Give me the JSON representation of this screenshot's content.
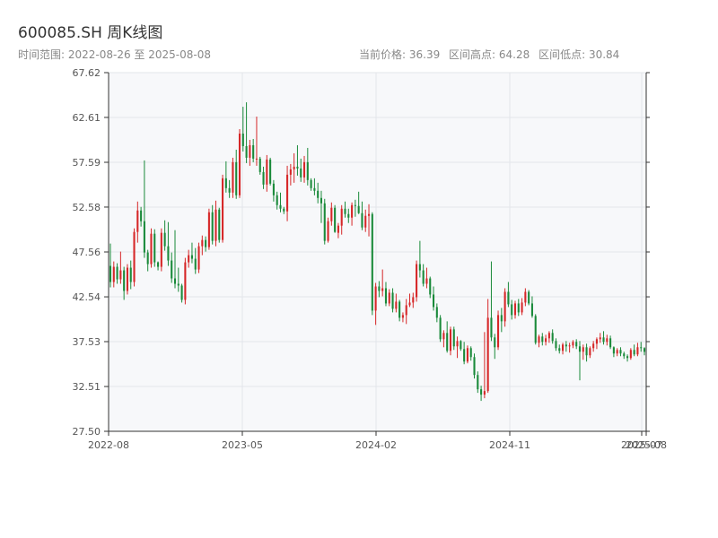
{
  "header": {
    "title": "600085.SH 周K线图",
    "subtitle": "时间范围: 2022-08-26 至 2025-08-08",
    "current_price": "当前价格: 36.39",
    "range_high": "区间高点: 64.28",
    "range_low": "区间低点: 30.84"
  },
  "chart_data": {
    "type": "candlestick",
    "title": "600085.SH 周K线图",
    "xlabel": "",
    "ylabel": "",
    "ylim": [
      27.5,
      67.62
    ],
    "y_ticks": [
      "27.50",
      "32.51",
      "37.53",
      "42.54",
      "47.56",
      "52.58",
      "57.59",
      "62.61",
      "67.62"
    ],
    "x_ticks": [
      "2022-08",
      "2023-05",
      "2024-02",
      "2024-11",
      "2025-07",
      "2025-08"
    ],
    "colors": {
      "up": "#d62728",
      "down": "#1a8a3a"
    },
    "grid": true,
    "ohlc": [
      [
        46.0,
        48.5,
        43.6,
        44.2
      ],
      [
        44.2,
        46.5,
        43.6,
        45.9
      ],
      [
        45.9,
        46.3,
        44.0,
        44.5
      ],
      [
        44.5,
        47.6,
        44.0,
        45.5
      ],
      [
        45.5,
        45.9,
        42.2,
        43.2
      ],
      [
        43.2,
        46.2,
        42.8,
        45.8
      ],
      [
        45.8,
        46.6,
        43.4,
        44.2
      ],
      [
        44.2,
        50.2,
        43.7,
        49.8
      ],
      [
        49.8,
        53.2,
        48.6,
        52.2
      ],
      [
        52.2,
        52.6,
        50.4,
        51.0
      ],
      [
        51.0,
        57.8,
        46.9,
        47.5
      ],
      [
        47.5,
        47.8,
        45.4,
        46.2
      ],
      [
        46.2,
        50.2,
        45.8,
        49.6
      ],
      [
        49.6,
        50.1,
        45.9,
        46.4
      ],
      [
        46.4,
        46.5,
        45.5,
        45.9
      ],
      [
        45.9,
        50.2,
        45.4,
        49.7
      ],
      [
        49.7,
        51.1,
        47.7,
        48.2
      ],
      [
        48.2,
        50.9,
        46.0,
        46.6
      ],
      [
        46.6,
        47.5,
        44.1,
        44.6
      ],
      [
        44.6,
        50.0,
        43.5,
        44.0
      ],
      [
        44.0,
        45.8,
        43.1,
        43.8
      ],
      [
        43.8,
        44.0,
        41.9,
        42.2
      ],
      [
        42.2,
        46.9,
        41.7,
        46.4
      ],
      [
        46.4,
        47.8,
        45.8,
        47.2
      ],
      [
        47.2,
        48.6,
        46.3,
        46.8
      ],
      [
        46.8,
        48.0,
        45.1,
        45.6
      ],
      [
        45.6,
        48.6,
        45.2,
        48.2
      ],
      [
        48.2,
        49.4,
        47.2,
        48.9
      ],
      [
        48.9,
        49.3,
        47.6,
        48.1
      ],
      [
        48.1,
        52.4,
        47.8,
        52.0
      ],
      [
        52.0,
        52.8,
        48.4,
        48.8
      ],
      [
        48.8,
        53.3,
        48.2,
        52.3
      ],
      [
        52.3,
        52.5,
        48.6,
        48.9
      ],
      [
        48.9,
        56.2,
        48.6,
        55.8
      ],
      [
        55.8,
        57.7,
        54.2,
        54.7
      ],
      [
        54.7,
        55.6,
        53.6,
        54.2
      ],
      [
        54.2,
        58.1,
        53.6,
        57.6
      ],
      [
        57.6,
        59.0,
        53.5,
        53.9
      ],
      [
        53.9,
        61.3,
        53.6,
        60.8
      ],
      [
        60.8,
        63.8,
        58.8,
        59.4
      ],
      [
        59.4,
        64.3,
        57.5,
        58.1
      ],
      [
        58.1,
        60.1,
        57.2,
        59.5
      ],
      [
        59.5,
        60.2,
        57.6,
        58.0
      ],
      [
        58.0,
        62.7,
        57.2,
        58.0
      ],
      [
        58.0,
        58.2,
        56.2,
        56.5
      ],
      [
        56.5,
        57.1,
        54.6,
        55.1
      ],
      [
        55.1,
        58.4,
        54.3,
        57.9
      ],
      [
        57.9,
        58.1,
        55.0,
        55.2
      ],
      [
        55.2,
        55.6,
        53.2,
        53.9
      ],
      [
        53.9,
        54.3,
        52.3,
        52.8
      ],
      [
        52.8,
        54.2,
        52.0,
        52.4
      ],
      [
        52.4,
        52.6,
        51.8,
        52.1
      ],
      [
        52.1,
        57.2,
        51.0,
        56.2
      ],
      [
        56.2,
        57.4,
        55.0,
        56.8
      ],
      [
        56.8,
        58.6,
        55.3,
        57.1
      ],
      [
        57.1,
        59.5,
        56.1,
        56.9
      ],
      [
        56.9,
        58.0,
        55.4,
        55.9
      ],
      [
        55.9,
        58.3,
        55.3,
        57.6
      ],
      [
        57.6,
        59.2,
        55.0,
        55.6
      ],
      [
        55.6,
        55.8,
        54.4,
        54.7
      ],
      [
        54.7,
        55.8,
        53.9,
        54.4
      ],
      [
        54.4,
        55.3,
        53.0,
        53.6
      ],
      [
        53.6,
        54.4,
        50.8,
        53.0
      ],
      [
        53.0,
        53.5,
        48.4,
        48.8
      ],
      [
        48.8,
        51.4,
        48.6,
        51.0
      ],
      [
        51.0,
        53.1,
        50.5,
        52.5
      ],
      [
        52.5,
        52.8,
        49.7,
        49.8
      ],
      [
        49.7,
        50.8,
        49.1,
        50.5
      ],
      [
        50.5,
        52.8,
        49.5,
        52.4
      ],
      [
        52.4,
        53.2,
        51.4,
        51.8
      ],
      [
        51.8,
        52.4,
        50.8,
        51.4
      ],
      [
        51.4,
        53.1,
        50.5,
        52.8
      ],
      [
        52.8,
        53.4,
        51.5,
        52.7
      ],
      [
        52.7,
        54.3,
        51.8,
        51.9
      ],
      [
        51.9,
        53.2,
        50.0,
        50.3
      ],
      [
        50.3,
        52.3,
        49.8,
        51.6
      ],
      [
        51.6,
        52.9,
        49.3,
        51.8
      ],
      [
        51.8,
        52.0,
        40.5,
        41.0
      ],
      [
        41.0,
        44.1,
        39.4,
        43.7
      ],
      [
        43.7,
        44.3,
        42.5,
        43.2
      ],
      [
        43.2,
        45.6,
        42.6,
        43.5
      ],
      [
        43.5,
        44.2,
        41.5,
        41.8
      ],
      [
        41.8,
        43.4,
        41.5,
        43.0
      ],
      [
        43.0,
        43.5,
        40.8,
        41.2
      ],
      [
        41.2,
        42.9,
        40.8,
        42.0
      ],
      [
        42.0,
        42.2,
        39.8,
        40.2
      ],
      [
        40.2,
        40.8,
        39.7,
        40.5
      ],
      [
        40.5,
        42.3,
        39.5,
        41.6
      ],
      [
        41.6,
        42.9,
        41.4,
        41.9
      ],
      [
        41.9,
        43.0,
        41.3,
        42.5
      ],
      [
        42.5,
        46.6,
        42.0,
        46.2
      ],
      [
        46.2,
        48.8,
        44.7,
        45.5
      ],
      [
        45.5,
        46.2,
        43.7,
        44.0
      ],
      [
        44.0,
        45.8,
        43.5,
        44.6
      ],
      [
        44.6,
        44.8,
        42.4,
        42.8
      ],
      [
        42.8,
        43.7,
        41.0,
        41.4
      ],
      [
        41.4,
        41.8,
        39.7,
        40.2
      ],
      [
        40.2,
        40.5,
        37.5,
        37.8
      ],
      [
        37.8,
        38.8,
        36.9,
        38.5
      ],
      [
        38.5,
        39.8,
        36.3,
        36.5
      ],
      [
        36.5,
        39.2,
        36.0,
        38.9
      ],
      [
        38.9,
        39.2,
        36.6,
        37.0
      ],
      [
        37.0,
        38.1,
        35.7,
        37.6
      ],
      [
        37.6,
        37.7,
        36.5,
        36.7
      ],
      [
        36.7,
        37.5,
        35.0,
        35.3
      ],
      [
        35.3,
        37.1,
        35.1,
        36.8
      ],
      [
        36.8,
        37.0,
        35.4,
        35.8
      ],
      [
        35.8,
        36.2,
        33.4,
        33.8
      ],
      [
        33.8,
        34.2,
        31.8,
        32.2
      ],
      [
        32.2,
        32.6,
        30.9,
        31.6
      ],
      [
        31.6,
        38.6,
        31.2,
        32.0
      ],
      [
        32.0,
        42.3,
        31.8,
        40.2
      ],
      [
        40.2,
        46.5,
        37.6,
        38.0
      ],
      [
        38.0,
        38.4,
        35.6,
        36.9
      ],
      [
        36.9,
        41.0,
        36.6,
        40.5
      ],
      [
        40.5,
        41.3,
        38.6,
        39.8
      ],
      [
        39.8,
        43.5,
        39.2,
        43.1
      ],
      [
        43.1,
        44.2,
        41.4,
        41.7
      ],
      [
        41.7,
        42.2,
        40.0,
        40.5
      ],
      [
        40.5,
        42.1,
        40.1,
        41.8
      ],
      [
        41.8,
        42.3,
        40.4,
        40.8
      ],
      [
        40.8,
        42.4,
        40.5,
        41.9
      ],
      [
        41.9,
        43.5,
        41.5,
        43.1
      ],
      [
        43.1,
        43.3,
        41.6,
        41.8
      ],
      [
        41.8,
        42.6,
        40.2,
        40.4
      ],
      [
        40.4,
        40.6,
        37.2,
        37.4
      ],
      [
        37.4,
        38.3,
        36.9,
        38.1
      ],
      [
        38.1,
        38.5,
        37.1,
        37.5
      ],
      [
        37.5,
        38.3,
        37.1,
        37.9
      ],
      [
        37.9,
        38.7,
        37.4,
        38.5
      ],
      [
        38.5,
        38.9,
        37.3,
        37.6
      ],
      [
        37.6,
        37.9,
        36.5,
        36.8
      ],
      [
        36.8,
        37.2,
        36.2,
        36.5
      ],
      [
        36.5,
        37.4,
        36.1,
        37.2
      ],
      [
        37.2,
        37.6,
        36.4,
        37.0
      ],
      [
        37.0,
        37.4,
        36.3,
        37.1
      ],
      [
        37.1,
        37.7,
        36.8,
        37.5
      ],
      [
        37.5,
        37.8,
        36.7,
        37.0
      ],
      [
        37.0,
        37.6,
        33.2,
        36.4
      ],
      [
        36.4,
        37.2,
        35.5,
        36.9
      ],
      [
        36.9,
        37.3,
        35.3,
        36.0
      ],
      [
        36.0,
        37.0,
        35.7,
        36.8
      ],
      [
        36.8,
        37.6,
        36.4,
        37.3
      ],
      [
        37.3,
        38.0,
        36.7,
        37.8
      ],
      [
        37.8,
        38.5,
        37.4,
        38.0
      ],
      [
        38.0,
        38.7,
        37.2,
        37.5
      ],
      [
        37.5,
        38.3,
        37.1,
        37.9
      ],
      [
        37.9,
        38.2,
        36.7,
        36.9
      ],
      [
        36.9,
        37.0,
        35.8,
        36.2
      ],
      [
        36.2,
        36.8,
        35.9,
        36.6
      ],
      [
        36.6,
        36.9,
        35.9,
        36.2
      ],
      [
        36.2,
        36.4,
        35.6,
        35.9
      ],
      [
        35.9,
        36.1,
        35.3,
        35.7
      ],
      [
        35.7,
        36.8,
        35.5,
        36.6
      ],
      [
        36.6,
        37.2,
        35.9,
        36.1
      ],
      [
        36.1,
        37.4,
        35.9,
        36.9
      ],
      [
        36.9,
        37.5,
        36.4,
        36.8
      ],
      [
        36.8,
        36.9,
        36.0,
        36.39
      ]
    ]
  }
}
